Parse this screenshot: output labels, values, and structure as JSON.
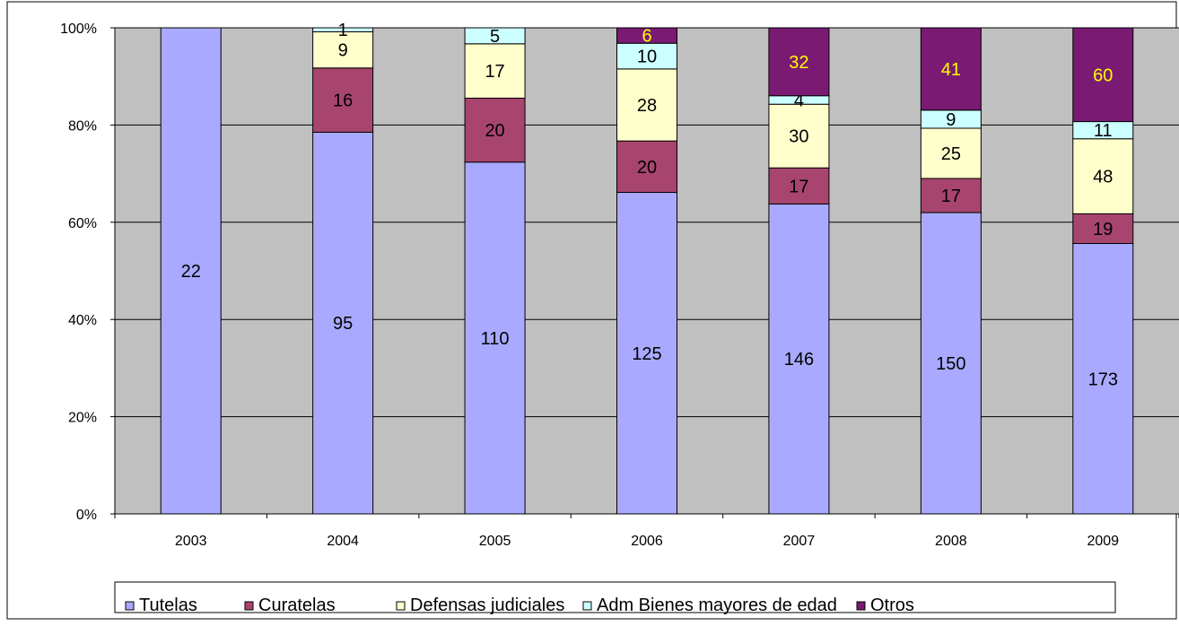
{
  "chart_data": {
    "type": "bar",
    "stacked": true,
    "normalized": "percent",
    "categories": [
      "2003",
      "2004",
      "2005",
      "2006",
      "2007",
      "2008",
      "2009"
    ],
    "series": [
      {
        "name": "Tutelas",
        "color": "#A9AAFF",
        "values": [
          22,
          95,
          110,
          125,
          146,
          150,
          173
        ],
        "label_color": "#000000"
      },
      {
        "name": "Curatelas",
        "color": "#A8456F",
        "values": [
          0,
          16,
          20,
          20,
          17,
          17,
          19
        ],
        "label_color": "#000000"
      },
      {
        "name": "Defensas judiciales",
        "color": "#FFFFCC",
        "values": [
          0,
          9,
          17,
          28,
          30,
          25,
          48
        ],
        "label_color": "#000000"
      },
      {
        "name": "Adm Bienes mayores de edad",
        "color": "#CCFFFF",
        "values": [
          0,
          1,
          5,
          10,
          4,
          9,
          11
        ],
        "label_color": "#000000"
      },
      {
        "name": "Otros",
        "color": "#7B1A72",
        "values": [
          0,
          0,
          0,
          6,
          32,
          41,
          60
        ],
        "label_color": "#FFFF00"
      }
    ],
    "y_ticks": [
      "0%",
      "20%",
      "40%",
      "60%",
      "80%",
      "100%"
    ],
    "ylim": [
      0,
      100
    ],
    "grid": true,
    "plot_background": "#C0C0C0",
    "legend_position": "bottom"
  }
}
